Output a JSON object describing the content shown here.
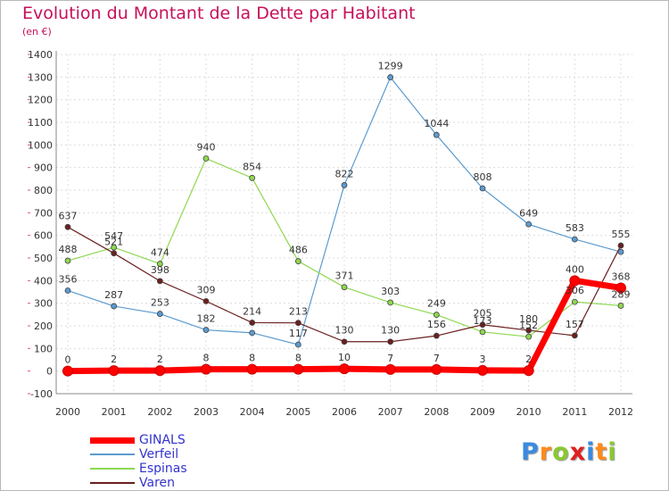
{
  "chart_data": {
    "type": "line",
    "title": "Evolution du Montant de la Dette par Habitant",
    "subtitle": "(en €)",
    "x": [
      "2000",
      "2001",
      "2002",
      "2003",
      "2004",
      "2005",
      "2006",
      "2007",
      "2008",
      "2009",
      "2010",
      "2011",
      "2012"
    ],
    "ylim": [
      -100,
      1400
    ],
    "yticks": [
      -100,
      0,
      100,
      200,
      300,
      400,
      500,
      600,
      700,
      800,
      900,
      1000,
      1100,
      1200,
      1300,
      1400
    ],
    "grid": true,
    "legend_position": "bottom-left",
    "series": [
      {
        "name": "GINALS",
        "color": "#ff0000",
        "values": [
          0,
          2,
          2,
          8,
          8,
          8,
          10,
          7,
          7,
          3,
          2,
          400,
          368
        ],
        "labels": [
          "0",
          "2",
          "2",
          "8",
          "8",
          "8",
          "10",
          "7",
          "7",
          "3",
          "2",
          "400",
          "368"
        ]
      },
      {
        "name": "Verfeil",
        "color": "#5b9bd0",
        "values": [
          356,
          287,
          253,
          182,
          169,
          117,
          822,
          1299,
          1044,
          808,
          649,
          583,
          527
        ],
        "labels": [
          "356",
          "287",
          "253",
          "182",
          "",
          "117",
          "822",
          "1299",
          "1044",
          "808",
          "649",
          "583",
          ""
        ]
      },
      {
        "name": "Espinas",
        "color": "#8ed850",
        "values": [
          488,
          547,
          474,
          940,
          854,
          486,
          371,
          303,
          249,
          173,
          152,
          306,
          289
        ],
        "labels": [
          "488",
          "547",
          "474",
          "940",
          "854",
          "486",
          "371",
          "303",
          "249",
          "173",
          "152",
          "306",
          "289"
        ]
      },
      {
        "name": "Varen",
        "color": "#6b1f1f",
        "values": [
          637,
          521,
          398,
          309,
          214,
          213,
          130,
          130,
          156,
          205,
          180,
          157,
          555
        ],
        "labels": [
          "637",
          "521",
          "398",
          "309",
          "214",
          "213",
          "130",
          "130",
          "156",
          "205",
          "180",
          "157",
          "555"
        ]
      }
    ]
  },
  "logo": {
    "text": "Proxiti",
    "letter_colors": [
      "#3a8ae0",
      "#ff8a1a",
      "#8ac832",
      "#e02020",
      "#3a8ae0",
      "#ff8a1a",
      "#8ac832"
    ]
  }
}
